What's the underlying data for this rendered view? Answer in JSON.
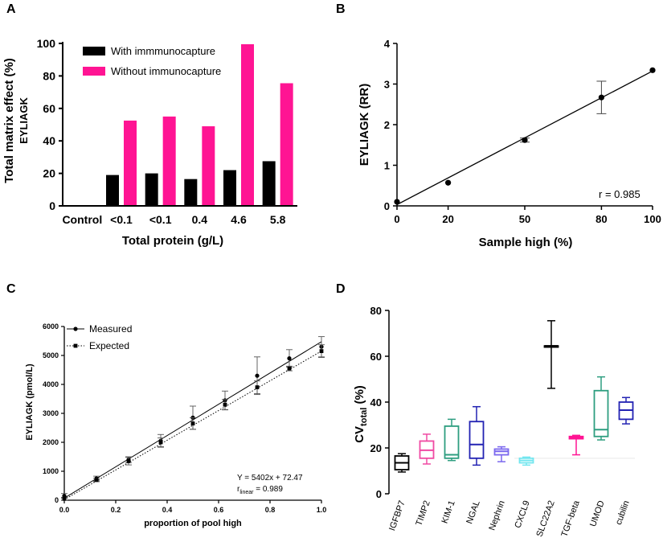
{
  "colors": {
    "black": "#000000",
    "magenta": "#ff1493",
    "dark_blue": "#2222b3",
    "pink": "#f04aa3",
    "teal": "#2e9e80",
    "violet": "#7b68ee",
    "cyan": "#73e6ef"
  },
  "chart_data": [
    {
      "id": "A",
      "panel_label": "A",
      "type": "bar",
      "title": "",
      "ylabel": "Total matrix effect (%)",
      "ylabel2": "EYLIAGK",
      "xlabel": "Total protein (g/L)",
      "ylim": [
        0,
        100
      ],
      "yticks": [
        "0",
        "20",
        "40",
        "60",
        "80",
        "100"
      ],
      "categories": [
        "Control",
        "<0.1",
        "<0.1",
        "0.4",
        "4.6",
        "5.8"
      ],
      "series": [
        {
          "name": "With immmunocapture",
          "color": "#000000",
          "values": [
            null,
            19,
            20,
            16.5,
            22,
            27.5
          ]
        },
        {
          "name": "Without immunocapture",
          "color": "#ff1493",
          "values": [
            null,
            52.5,
            55,
            49,
            99.5,
            75.5
          ]
        }
      ],
      "legend_position": "top-left"
    },
    {
      "id": "B",
      "panel_label": "B",
      "type": "scatter",
      "xlabel": "Sample high (%)",
      "ylabel": "EYLIAGK (RR)",
      "xlim": [
        0,
        100
      ],
      "ylim": [
        0,
        4
      ],
      "xticks": [
        "0",
        "20",
        "50",
        "80",
        "100"
      ],
      "yticks": [
        "0",
        "1",
        "2",
        "3",
        "4"
      ],
      "points": [
        {
          "x": 0,
          "y": 0.1,
          "err": 0
        },
        {
          "x": 20,
          "y": 0.57,
          "err": 0
        },
        {
          "x": 50,
          "y": 1.62,
          "err": 0.05
        },
        {
          "x": 80,
          "y": 2.67,
          "err": 0.4
        },
        {
          "x": 100,
          "y": 3.34,
          "err": 0
        }
      ],
      "fit": {
        "x0": 0,
        "y0": 0.03,
        "x1": 100,
        "y1": 3.32
      },
      "annotation": "r = 0.985"
    },
    {
      "id": "C",
      "panel_label": "C",
      "type": "line",
      "xlabel": "proportion of pool high",
      "ylabel": "EYLIAGK (pmol/L)",
      "xlim": [
        0,
        1
      ],
      "ylim": [
        0,
        6000
      ],
      "xticks": [
        "0.0",
        "0.2",
        "0.4",
        "0.6",
        "0.8",
        "1.0"
      ],
      "yticks": [
        "0",
        "1000",
        "2000",
        "3000",
        "4000",
        "5000",
        "6000"
      ],
      "series": [
        {
          "name": "Measured",
          "style": "solid",
          "marker": "circle",
          "x": [
            0,
            0.125,
            0.25,
            0.375,
            0.5,
            0.625,
            0.75,
            0.875,
            1.0
          ],
          "y": [
            150,
            750,
            1400,
            2050,
            2850,
            3450,
            4300,
            4900,
            5300
          ],
          "err": [
            80,
            80,
            100,
            220,
            400,
            320,
            650,
            300,
            350
          ]
        },
        {
          "name": "Expected",
          "style": "dotted",
          "marker": "square",
          "x": [
            0,
            0.125,
            0.25,
            0.375,
            0.5,
            0.625,
            0.75,
            0.875,
            1.0
          ],
          "y": [
            50,
            700,
            1350,
            2000,
            2650,
            3300,
            3900,
            4550,
            5150
          ],
          "err": [
            50,
            60,
            130,
            150,
            200,
            180,
            220,
            80,
            220
          ]
        }
      ],
      "fit_measured": {
        "x0": 0,
        "y0": 72.47,
        "x1": 1,
        "y1": 5474.47
      },
      "fit_expected": {
        "x0": 0,
        "y0": 20,
        "x1": 1,
        "y1": 5150
      },
      "equation": "Y = 5402x + 72.47",
      "r_label": "r",
      "r_sub": "linear",
      "r_value": " = 0.989",
      "legend_position": "top-left"
    },
    {
      "id": "D",
      "panel_label": "D",
      "type": "box",
      "ylabel": "CV",
      "ylabel_sub": "total",
      "ylabel_unit": " (%)",
      "ylim": [
        0,
        80
      ],
      "yticks": [
        "0",
        "20",
        "40",
        "60",
        "80"
      ],
      "categories": [
        "IGFBP7",
        "TIMP2",
        "KIM-1",
        "NGAL",
        "Nephrin",
        "CXCL9",
        "SLC22A2",
        "TGF-beta",
        "UMOD",
        "cubilin"
      ],
      "boxes": [
        {
          "name": "IGFBP7",
          "color": "#000000",
          "min": 9.5,
          "q1": 10.5,
          "median": 13.5,
          "q3": 16.5,
          "max": 17.5
        },
        {
          "name": "TIMP2",
          "color": "#f04aa3",
          "min": 13,
          "q1": 15.5,
          "median": 19,
          "q3": 23,
          "max": 26
        },
        {
          "name": "KIM-1",
          "color": "#2e9e80",
          "min": 14.5,
          "q1": 15.5,
          "median": 17,
          "q3": 29.5,
          "max": 32.5
        },
        {
          "name": "NGAL",
          "color": "#2222b3",
          "min": 12.5,
          "q1": 15.5,
          "median": 21.5,
          "q3": 31.5,
          "max": 38
        },
        {
          "name": "Nephrin",
          "color": "#7b68ee",
          "min": 14,
          "q1": 17,
          "median": 18.5,
          "q3": 19.5,
          "max": 20.5
        },
        {
          "name": "CXCL9",
          "color": "#73e6ef",
          "min": 12.5,
          "q1": 13.5,
          "median": 14.5,
          "q3": 15.5,
          "max": 16
        },
        {
          "name": "SLC22A2",
          "color": "#000000",
          "min": 46,
          "q1": 64,
          "median": 64.5,
          "q3": 64.5,
          "max": 75.5
        },
        {
          "name": "TGF-beta",
          "color": "#ff1493",
          "min": 17,
          "q1": 24,
          "median": 24.5,
          "q3": 25,
          "max": 25.5
        },
        {
          "name": "UMOD",
          "color": "#2e9e80",
          "min": 23.5,
          "q1": 25,
          "median": 28,
          "q3": 45,
          "max": 51
        },
        {
          "name": "cubilin",
          "color": "#2222b3",
          "min": 30.5,
          "q1": 32.5,
          "median": 36.5,
          "q3": 40,
          "max": 42
        }
      ]
    }
  ]
}
